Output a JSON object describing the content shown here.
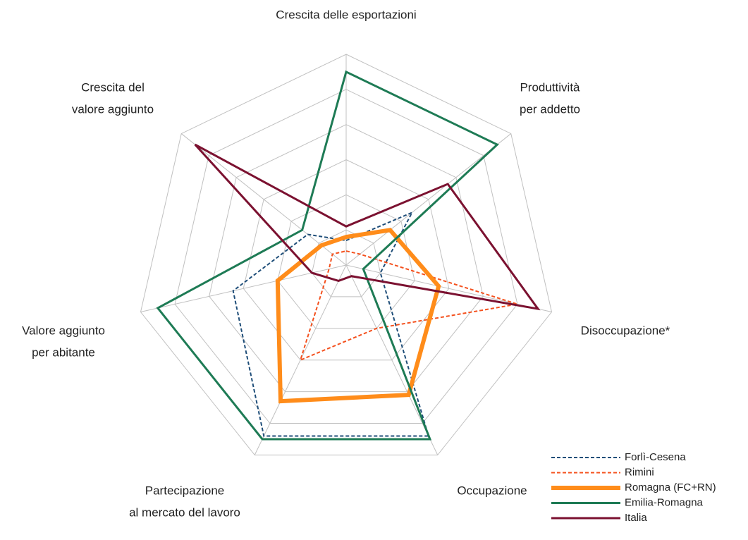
{
  "chart_data": {
    "type": "radar",
    "categories": [
      [
        "Crescita delle esportazioni"
      ],
      [
        "Produttività",
        "per addetto"
      ],
      [
        "Disoccupazione*"
      ],
      [
        "Occupazione"
      ],
      [
        "Partecipazione",
        "al mercato del lavoro"
      ],
      [
        "Valore aggiunto",
        "per abitante"
      ],
      [
        "Crescita del",
        "valore aggiunto"
      ]
    ],
    "ylim": [
      0,
      6
    ],
    "yticks": [
      1,
      2,
      3,
      4,
      5,
      6
    ],
    "grid": true,
    "legend": "bottom-right",
    "series": [
      {
        "name": "Forlì-Cesena",
        "color": "#1f4e79",
        "style": "dashed",
        "values": [
          0.7,
          2.4,
          1.0,
          5.4,
          5.4,
          3.3,
          1.4
        ]
      },
      {
        "name": "Rimini",
        "color": "#f4511e",
        "style": "dashed",
        "values": [
          0.4,
          0.5,
          5.0,
          2.0,
          3.0,
          0.5,
          0.5
        ]
      },
      {
        "name": "Romagna (FC+RN)",
        "color": "#ff8c1a",
        "style": "thick",
        "values": [
          0.8,
          1.6,
          2.7,
          4.1,
          4.3,
          2.0,
          0.9
        ]
      },
      {
        "name": "Emilia-Romagna",
        "color": "#1e7b55",
        "style": "solid",
        "values": [
          5.5,
          5.5,
          0.5,
          5.5,
          5.5,
          5.5,
          1.6
        ]
      },
      {
        "name": "Italia",
        "color": "#7b1130",
        "style": "solid",
        "values": [
          1.1,
          3.7,
          5.6,
          0.35,
          0.5,
          1.0,
          5.5
        ]
      }
    ]
  }
}
